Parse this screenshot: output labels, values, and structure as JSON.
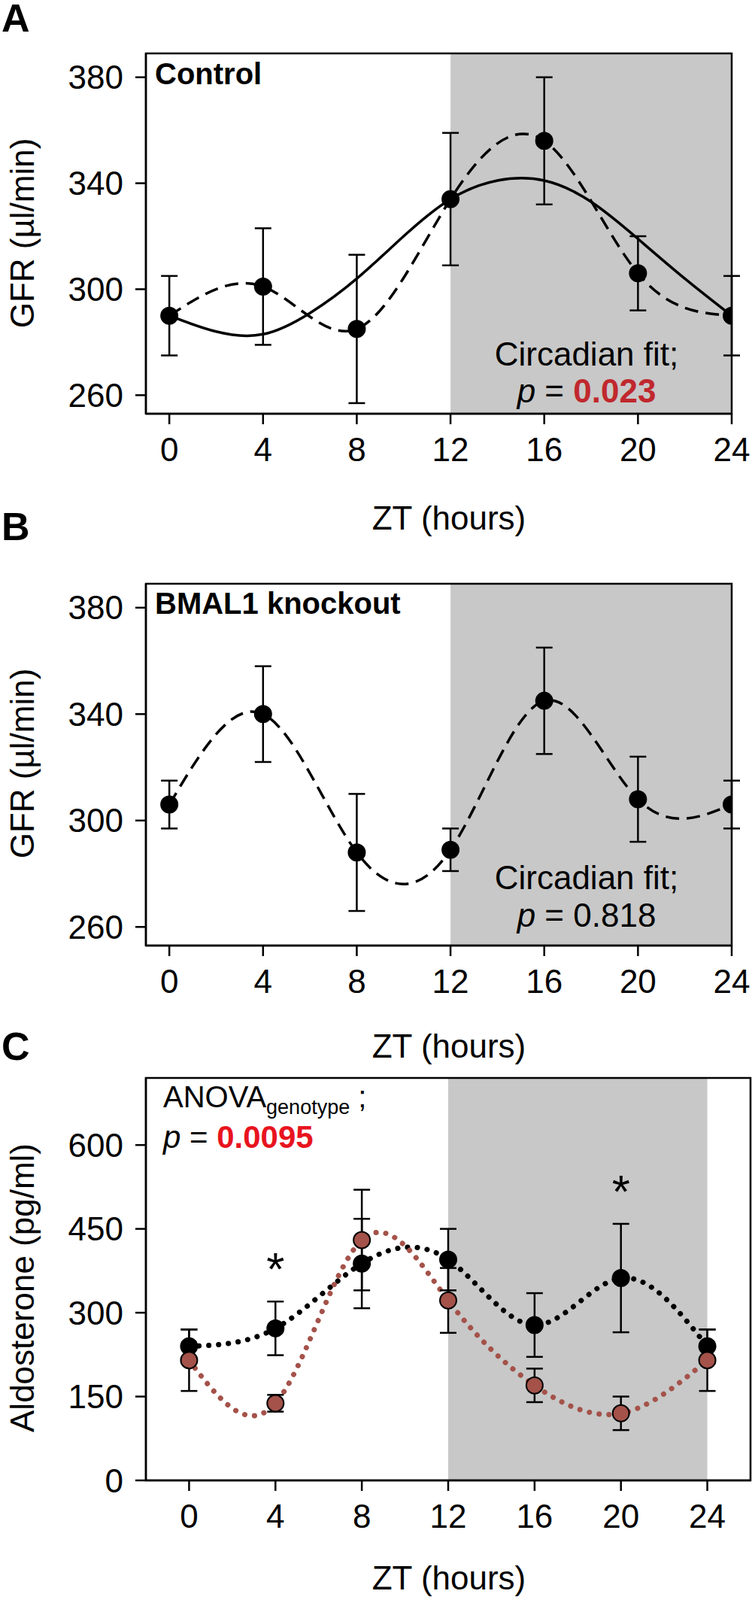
{
  "chart_data": [
    {
      "type": "line",
      "panel": "A",
      "title": "Control",
      "x_label": "ZT (hours)",
      "y_label": "GFR (µl/min)",
      "xlim": [
        -1,
        24
      ],
      "xticks": [
        0,
        4,
        8,
        12,
        16,
        20,
        24
      ],
      "ylim": [
        253,
        389
      ],
      "yticks": [
        260,
        300,
        340,
        380
      ],
      "dark_phase": [
        12,
        24
      ],
      "x": [
        0,
        4,
        8,
        12,
        16,
        20,
        24
      ],
      "series": [
        {
          "color": "#000000",
          "line_style": "dashed",
          "marker": "circle",
          "values": [
            290,
            301,
            285,
            334,
            356,
            306,
            290
          ],
          "errors": [
            15,
            22,
            28,
            25,
            24,
            14,
            15
          ]
        },
        {
          "color": "#000000",
          "line_style": "solid",
          "marker": "none",
          "x": [
            0,
            2,
            4,
            6,
            8,
            10,
            12,
            14,
            16,
            18,
            20,
            22,
            24
          ],
          "values": [
            290,
            284,
            283,
            291,
            304,
            320,
            334,
            341,
            341,
            333,
            319,
            304,
            290
          ]
        }
      ],
      "annotation": {
        "text": "Circadian fit;",
        "p_label": "p",
        "p_sep": " = ",
        "p_value": "0.023",
        "color": "#c0282d"
      }
    },
    {
      "type": "line",
      "panel": "B",
      "title": "BMAL1 knockout",
      "x_label": "ZT (hours)",
      "y_label": "GFR (µl/min)",
      "xlim": [
        -1,
        24
      ],
      "xticks": [
        0,
        4,
        8,
        12,
        16,
        20,
        24
      ],
      "ylim": [
        253,
        389
      ],
      "yticks": [
        260,
        300,
        340,
        380
      ],
      "dark_phase": [
        12,
        24
      ],
      "x": [
        0,
        4,
        8,
        12,
        16,
        20,
        24
      ],
      "series": [
        {
          "color": "#000000",
          "line_style": "dashed",
          "marker": "circle",
          "values": [
            306,
            340,
            288,
            289,
            345,
            308,
            306
          ],
          "errors": [
            9,
            18,
            22,
            8,
            20,
            16,
            9
          ]
        }
      ],
      "annotation": {
        "text": "Circadian fit;",
        "p_label": "p",
        "p_sep": " = ",
        "p_value": "0.818",
        "color": "#000000"
      }
    },
    {
      "type": "line",
      "panel": "C",
      "x_label": "ZT (hours)",
      "y_label": "Aldosterone (pg/ml)",
      "xlim": [
        -2,
        26
      ],
      "xticks": [
        0,
        4,
        8,
        12,
        16,
        20,
        24
      ],
      "ylim": [
        0,
        720
      ],
      "yticks": [
        0,
        150,
        300,
        450,
        600
      ],
      "dark_phase": [
        12,
        24
      ],
      "x": [
        0,
        4,
        8,
        12,
        16,
        20,
        24
      ],
      "series": [
        {
          "color": "#000000",
          "line_style": "dotted",
          "marker": "circle",
          "values": [
            240,
            272,
            388,
            395,
            278,
            362,
            240
          ],
          "errors": [
            30,
            48,
            80,
            55,
            57,
            97,
            30
          ]
        },
        {
          "color": "#a4524a",
          "line_style": "dotted",
          "marker": "circle",
          "values": [
            215,
            138,
            430,
            322,
            170,
            120,
            215
          ],
          "errors": [
            55,
            15,
            90,
            58,
            30,
            30,
            55
          ]
        }
      ],
      "significance": [
        {
          "x": 4,
          "label": "*"
        },
        {
          "x": 20,
          "label": "*"
        }
      ],
      "annotation": {
        "text": "ANOVA",
        "subscript": "genotype",
        "suffix": " ;",
        "p_label": "p",
        "p_sep": " = ",
        "p_value": "0.0095",
        "color": "#e8141e"
      }
    }
  ]
}
